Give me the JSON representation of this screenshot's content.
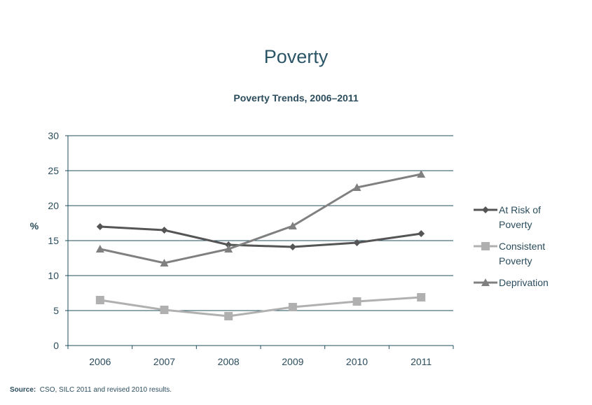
{
  "title": "Poverty",
  "source_label": "Source:",
  "source_text": "CSO, SILC 2011 and revised 2010 results.",
  "chart_data": {
    "type": "line",
    "title": "Poverty Trends, 2006–2011",
    "xlabel": "",
    "ylabel": "%",
    "categories": [
      "2006",
      "2007",
      "2008",
      "2009",
      "2010",
      "2011"
    ],
    "ylim": [
      0,
      30
    ],
    "yticks": [
      0,
      5,
      10,
      15,
      20,
      25,
      30
    ],
    "grid": true,
    "legend_position": "right",
    "series": [
      {
        "name": "At Risk of Poverty",
        "legend_lines": [
          "At Risk of",
          "Poverty"
        ],
        "marker": "diamond",
        "color": "#555555",
        "values": [
          17.0,
          16.5,
          14.4,
          14.1,
          14.7,
          16.0
        ]
      },
      {
        "name": "Consistent Poverty",
        "legend_lines": [
          "Consistent",
          "Poverty"
        ],
        "marker": "square",
        "color": "#b0b0b0",
        "values": [
          6.5,
          5.1,
          4.2,
          5.5,
          6.3,
          6.9
        ]
      },
      {
        "name": "Deprivation",
        "legend_lines": [
          "Deprivation"
        ],
        "marker": "triangle",
        "color": "#808080",
        "values": [
          13.8,
          11.8,
          13.8,
          17.1,
          22.6,
          24.5
        ]
      }
    ]
  }
}
